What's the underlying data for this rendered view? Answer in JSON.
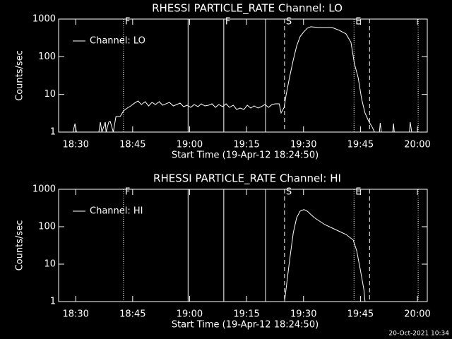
{
  "chart_data": [
    {
      "type": "line",
      "title": "RHESSI PARTICLE_RATE Channel: LO",
      "x_label": "Start Time (19-Apr-12 18:24:50)",
      "y_label": "Counts/sec",
      "x": [
        1105.5,
        1109.3,
        1109.8,
        1110.2,
        1116.1,
        1116.5,
        1116.9,
        1117.8,
        1118.0,
        1118.7,
        1119.1,
        1119.9,
        1120.6,
        1121.7,
        1122.6,
        1123.6,
        1124.5,
        1125.5,
        1126.4,
        1127.3,
        1128.3,
        1129.2,
        1130.1,
        1131.0,
        1132.0,
        1132.9,
        1133.8,
        1134.7,
        1135.7,
        1136.6,
        1137.5,
        1138.4,
        1139.4,
        1140.3,
        1141.2,
        1142.2,
        1143.1,
        1144.0,
        1145.0,
        1145.9,
        1146.8,
        1147.7,
        1148.7,
        1149.6,
        1150.5,
        1151.5,
        1152.4,
        1153.3,
        1154.3,
        1155.2,
        1156.1,
        1157.0,
        1158.0,
        1158.9,
        1159.8,
        1160.8,
        1161.7,
        1162.6,
        1163.6,
        1164.1,
        1164.9,
        1165.4,
        1166.3,
        1167.3,
        1168.2,
        1169.1,
        1170.1,
        1171.0,
        1171.9,
        1173.8,
        1175.6,
        1177.5,
        1179.4,
        1181.2,
        1182.5,
        1183.4,
        1184.4,
        1185.3,
        1186.2,
        1187.2,
        1188.1,
        1188.7,
        1190.0,
        1190.2,
        1190.5,
        1193.5,
        1193.7,
        1193.9,
        1197.9,
        1198.1,
        1198.5,
        1202.6
      ],
      "series": [
        {
          "name": "Channel: LO",
          "color": "#ffffff",
          "values": [
            1,
            1,
            1.68,
            1,
            1,
            1.83,
            1,
            1.83,
            1,
            1.83,
            1.91,
            1,
            2.59,
            2.59,
            3.66,
            4.34,
            4.94,
            5.88,
            6.69,
            5.39,
            6.41,
            4.94,
            6.14,
            5.39,
            6.41,
            5.16,
            5.63,
            6.14,
            4.94,
            5.39,
            5.88,
            4.73,
            5.16,
            4.53,
            5.39,
            4.73,
            5.63,
            4.94,
            5.16,
            5.63,
            4.53,
            5.39,
            4.73,
            5.63,
            4.53,
            5.16,
            3.98,
            4.34,
            3.98,
            5.16,
            4.34,
            4.94,
            4.34,
            4.73,
            5.39,
            4.53,
            5.39,
            5.63,
            5.63,
            3.21,
            4.53,
            9.46,
            27.8,
            82,
            194,
            341,
            461,
            573,
            624,
            598,
            598,
            598,
            504,
            405,
            241,
            66,
            27.8,
            7.6,
            3.21,
            1.91,
            1.35,
            1,
            1,
            1.75,
            1,
            1,
            1.68,
            1,
            1,
            1.83,
            1,
            1
          ]
        }
      ],
      "xlim": [
        1105.5,
        1202.6
      ],
      "xticks": [
        {
          "value": 1110,
          "label": "18:30"
        },
        {
          "value": 1125,
          "label": "18:45"
        },
        {
          "value": 1140,
          "label": "19:00"
        },
        {
          "value": 1155,
          "label": "19:15"
        },
        {
          "value": 1170,
          "label": "19:30"
        },
        {
          "value": 1185,
          "label": "19:45"
        },
        {
          "value": 1200,
          "label": "20:00"
        }
      ],
      "ylim": [
        1,
        1000
      ],
      "yticks": [
        1,
        10,
        100,
        1000
      ],
      "log_y": true,
      "legend": "upper left",
      "markers": [
        {
          "x": 1122.6,
          "style": "dotted",
          "label": "F"
        },
        {
          "x": 1139.6,
          "style": "solid"
        },
        {
          "x": 1149.0,
          "style": "solid",
          "label": "F"
        },
        {
          "x": 1160.0,
          "style": "solid"
        },
        {
          "x": 1165.0,
          "style": "dashed",
          "label": "S"
        },
        {
          "x": 1183.3,
          "style": "dotted",
          "label": "E"
        },
        {
          "x": 1187.4,
          "style": "dashed"
        },
        {
          "x": 1200.2,
          "style": "dotted"
        }
      ]
    },
    {
      "type": "line",
      "title": "RHESSI PARTICLE_RATE Channel: HI",
      "x_label": "Start Time (19-Apr-12 18:24:50)",
      "y_label": "Counts/sec",
      "x": [
        1165.0,
        1166.3,
        1167.3,
        1168.2,
        1169.1,
        1170.1,
        1171.0,
        1172.8,
        1175.6,
        1178.4,
        1181.2,
        1183.1,
        1184.0,
        1184.9,
        1185.9,
        1186.2
      ],
      "series": [
        {
          "name": "Channel: HI",
          "color": "#ffffff",
          "values": [
            1,
            11.9,
            68,
            176,
            260,
            287,
            260,
            176,
            114,
            84,
            62,
            44,
            23,
            7.7,
            2.1,
            1
          ]
        }
      ],
      "xlim": [
        1105.5,
        1202.6
      ],
      "xticks": [
        {
          "value": 1110,
          "label": "18:30"
        },
        {
          "value": 1125,
          "label": "18:45"
        },
        {
          "value": 1140,
          "label": "19:00"
        },
        {
          "value": 1155,
          "label": "19:15"
        },
        {
          "value": 1170,
          "label": "19:30"
        },
        {
          "value": 1185,
          "label": "19:45"
        },
        {
          "value": 1200,
          "label": "20:00"
        }
      ],
      "ylim": [
        1,
        1000
      ],
      "yticks": [
        1,
        10,
        100,
        1000
      ],
      "log_y": true,
      "legend": "upper left",
      "markers": [
        {
          "x": 1122.6,
          "style": "dotted",
          "label": "F"
        },
        {
          "x": 1139.6,
          "style": "solid"
        },
        {
          "x": 1149.0,
          "style": "solid"
        },
        {
          "x": 1160.0,
          "style": "solid"
        },
        {
          "x": 1165.0,
          "style": "dashed",
          "label": "S"
        },
        {
          "x": 1183.3,
          "style": "dotted",
          "label": "E"
        },
        {
          "x": 1187.4,
          "style": "dashed"
        },
        {
          "x": 1200.2,
          "style": "dotted"
        }
      ]
    }
  ],
  "footer": "20-Oct-2021 10:34"
}
